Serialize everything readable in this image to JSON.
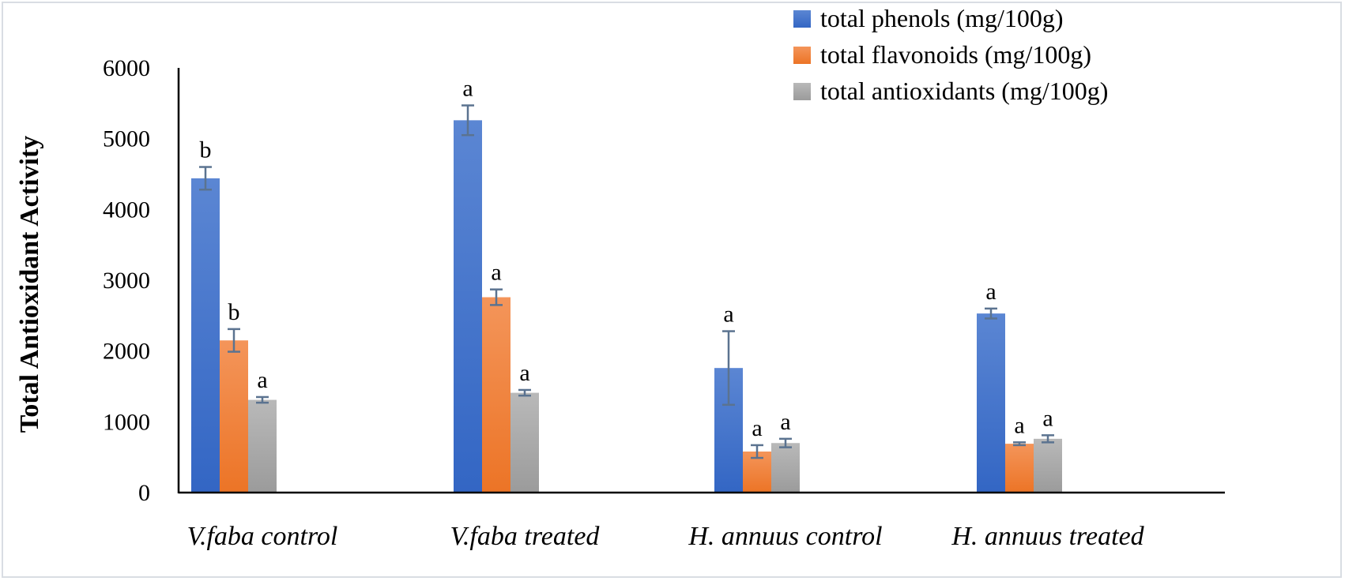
{
  "chart_data": {
    "type": "bar",
    "title": "",
    "xlabel": "",
    "ylabel": "Total Antioxidant Activity",
    "ylim": [
      0,
      6000
    ],
    "yticks": [
      0,
      1000,
      2000,
      3000,
      4000,
      5000,
      6000
    ],
    "categories": [
      "V.faba control",
      "V.faba treated",
      "H. annuus control",
      "H. annuus treated"
    ],
    "legend_position": "top-right",
    "series": [
      {
        "name": "total phenols (mg/100g)",
        "color": "#4472c4",
        "values": [
          4440,
          5260,
          1760,
          2530
        ],
        "errors": [
          160,
          210,
          520,
          70
        ],
        "significance": [
          "b",
          "a",
          "a",
          "a"
        ]
      },
      {
        "name": "total flavonoids (mg/100g)",
        "color": "#ed7d31",
        "values": [
          2150,
          2760,
          580,
          690
        ],
        "errors": [
          160,
          110,
          90,
          20
        ],
        "significance": [
          "b",
          "a",
          "a",
          "a"
        ]
      },
      {
        "name": "total antioxidants (mg/100g)",
        "color": "#a5a5a5",
        "values": [
          1310,
          1410,
          700,
          760
        ],
        "errors": [
          40,
          40,
          60,
          50
        ],
        "significance": [
          "a",
          "a",
          "a",
          "a"
        ]
      }
    ]
  }
}
